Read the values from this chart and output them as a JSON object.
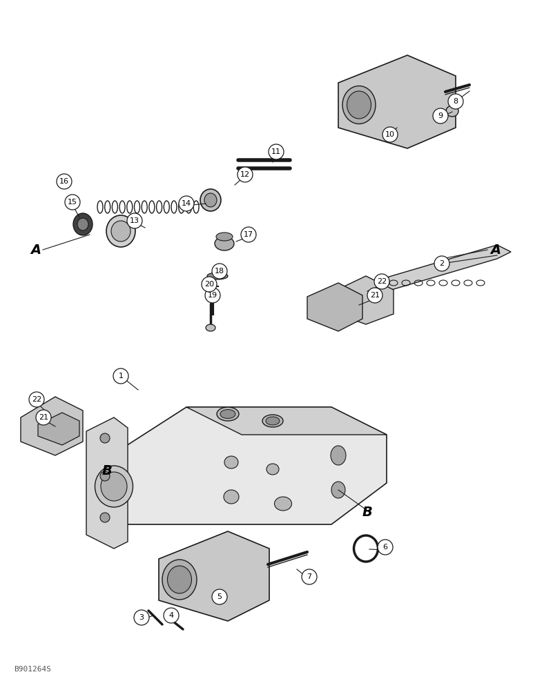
{
  "background_color": "#ffffff",
  "watermark": "B901264S",
  "line_color": "#1a1a1a",
  "text_color": "#000000",
  "labels": [
    [
      175,
      545,
      "1"
    ],
    [
      640,
      382,
      "2"
    ],
    [
      660,
      147,
      "8"
    ],
    [
      638,
      168,
      "9"
    ],
    [
      565,
      195,
      "10"
    ],
    [
      400,
      220,
      "11"
    ],
    [
      355,
      253,
      "12"
    ],
    [
      195,
      320,
      "13"
    ],
    [
      270,
      295,
      "14"
    ],
    [
      105,
      293,
      "15"
    ],
    [
      93,
      263,
      "16"
    ],
    [
      360,
      340,
      "17"
    ],
    [
      318,
      393,
      "18"
    ],
    [
      308,
      428,
      "19"
    ],
    [
      303,
      412,
      "20"
    ],
    [
      63,
      605,
      "21"
    ],
    [
      53,
      579,
      "22"
    ],
    [
      543,
      428,
      "21"
    ],
    [
      553,
      408,
      "22"
    ],
    [
      205,
      895,
      "3"
    ],
    [
      248,
      892,
      "4"
    ],
    [
      318,
      865,
      "5"
    ],
    [
      558,
      793,
      "6"
    ],
    [
      448,
      836,
      "7"
    ]
  ],
  "section_labels": [
    [
      52,
      362,
      "A"
    ],
    [
      718,
      362,
      "A"
    ],
    [
      155,
      682,
      "B"
    ],
    [
      532,
      742,
      "B"
    ]
  ]
}
